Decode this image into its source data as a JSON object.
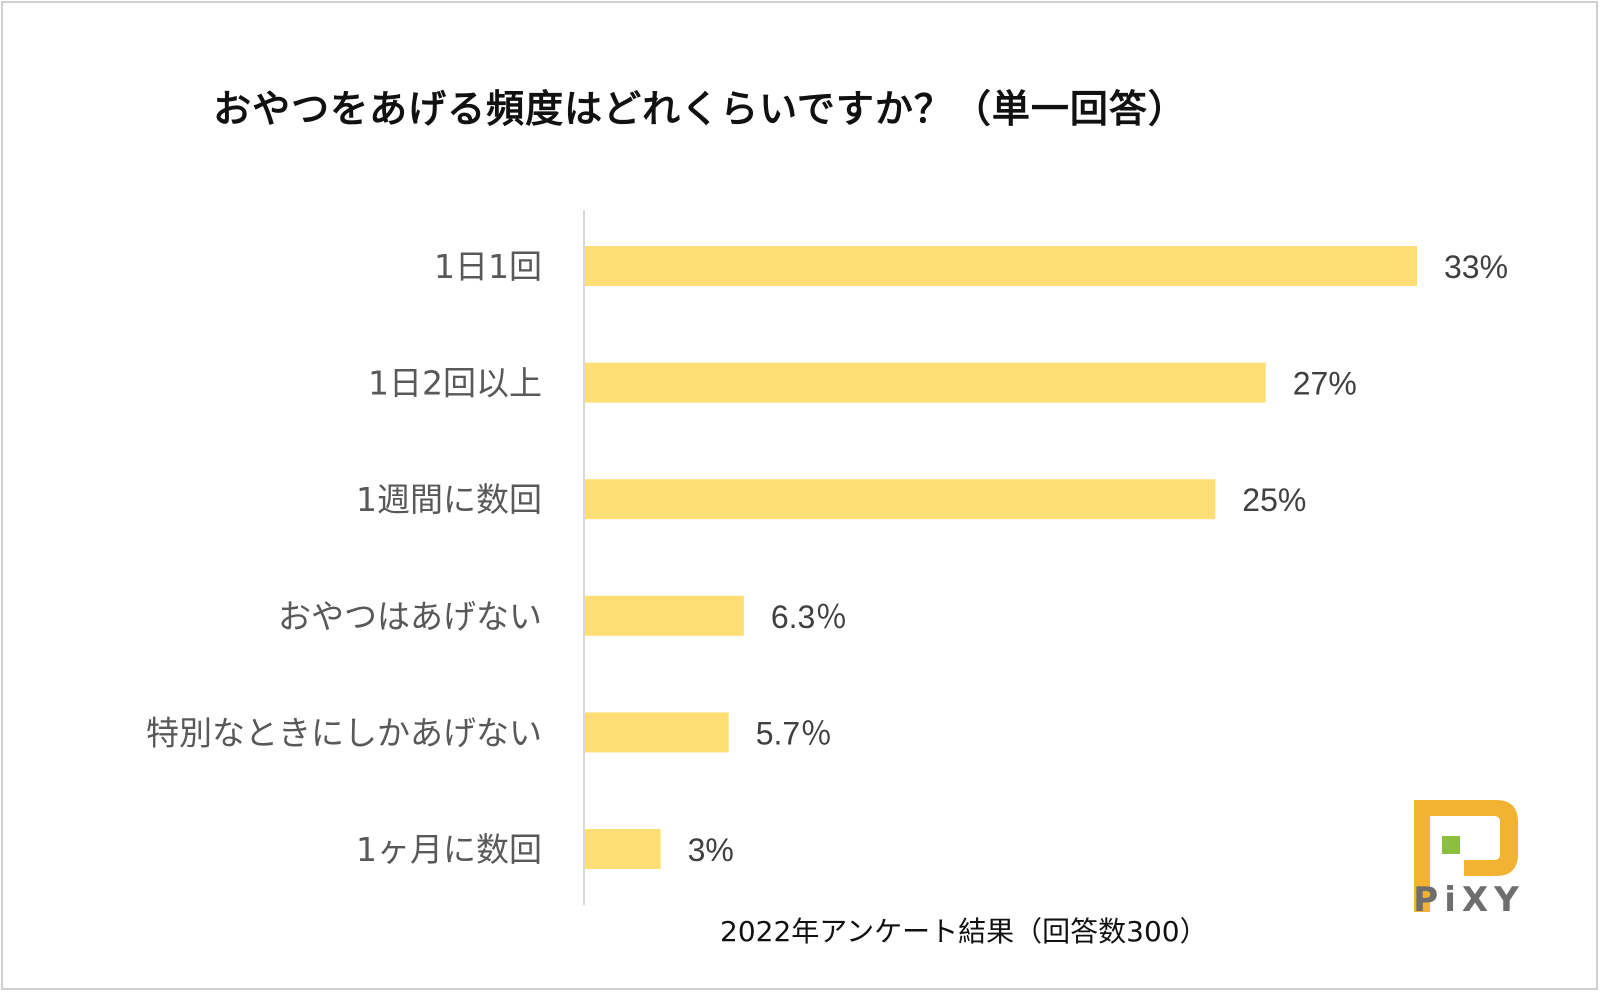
{
  "chart_data": {
    "type": "bar",
    "orientation": "horizontal",
    "title": "おやつをあげる頻度はどれくらいですか？（単一回答）",
    "categories": [
      "1日1回",
      "1日2回以上",
      "1週間に数回",
      "おやつはあげない",
      "特別なときにしかあげない",
      "1ヶ月に数回"
    ],
    "values": [
      33,
      27,
      25,
      6.3,
      5.7,
      3
    ],
    "value_labels": [
      "33%",
      "27%",
      "25%",
      "6.3％",
      "5.7％",
      "3%"
    ],
    "xlim": [
      0,
      33
    ],
    "xlabel": "",
    "ylabel": "",
    "grid": false,
    "bar_color": "#FFDE75"
  },
  "caption": "2022年アンケート結果（回答数300）",
  "logo": {
    "text": "PiXY",
    "colors": {
      "primary": "#F2B233",
      "accent": "#8DBF3E",
      "text": "#6E6E6E"
    }
  }
}
